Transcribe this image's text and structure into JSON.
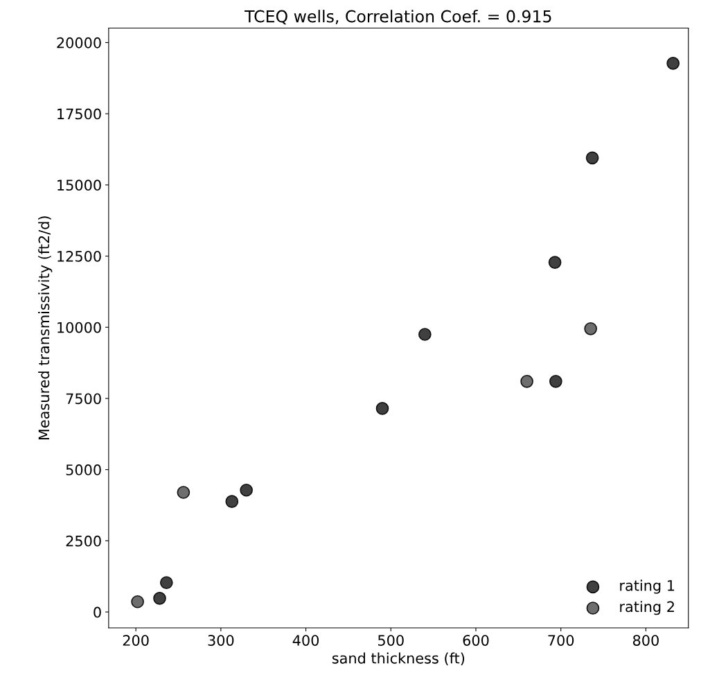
{
  "chart_data": {
    "type": "scatter",
    "title": "TCEQ wells, Correlation Coef. = 0.915",
    "xlabel": "sand thickness (ft)",
    "ylabel": "Measured transmissivity (ft2/d)",
    "series": [
      {
        "name": "rating 1",
        "color": "#404040",
        "x": [
          228,
          236,
          313,
          330,
          490,
          540,
          693,
          694,
          737,
          832
        ],
        "values": [
          480,
          1030,
          3880,
          4280,
          7150,
          9750,
          12280,
          8100,
          15950,
          19270
        ]
      },
      {
        "name": "rating 2",
        "color": "#6e6e6e",
        "x": [
          202,
          256,
          660,
          735
        ],
        "values": [
          360,
          4200,
          8100,
          9950
        ]
      }
    ],
    "xlim": [
      168,
      850
    ],
    "ylim": [
      -560,
      20510
    ],
    "xticks": [
      200,
      300,
      400,
      500,
      600,
      700,
      800
    ],
    "yticks": [
      0,
      2500,
      5000,
      7500,
      10000,
      12500,
      15000,
      17500,
      20000
    ],
    "grid": false,
    "legend": "bottom right",
    "marker": "circle"
  }
}
